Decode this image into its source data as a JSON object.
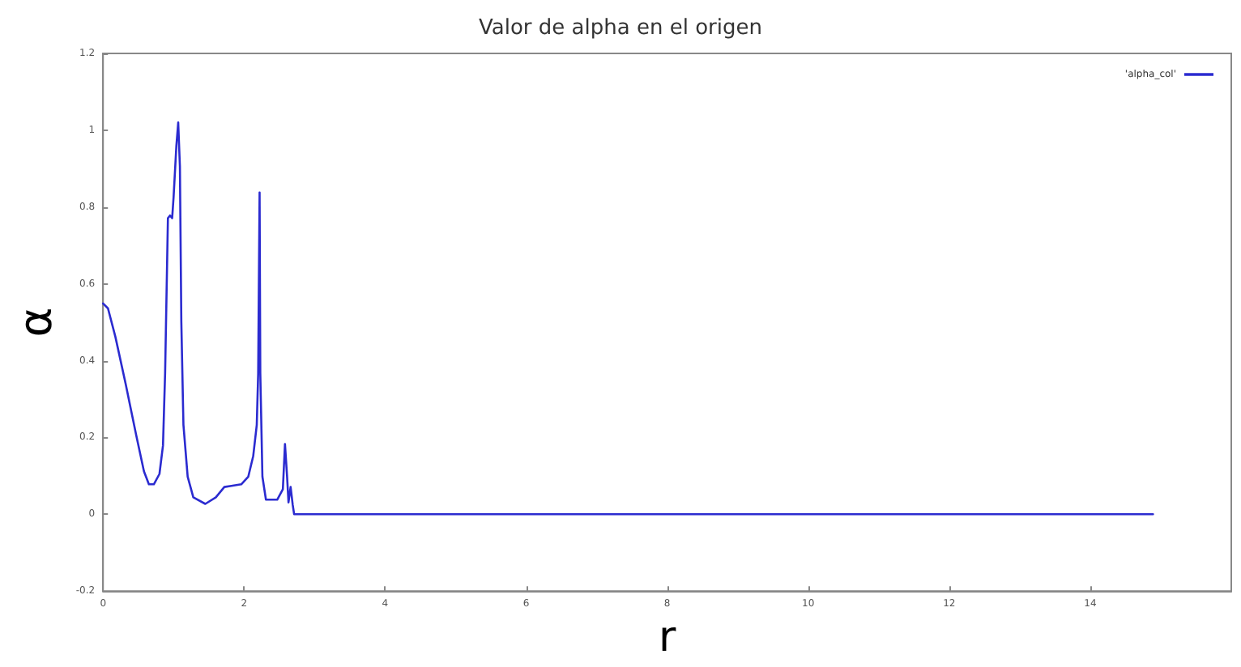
{
  "chart_data": {
    "type": "line",
    "title": "Valor de alpha en el origen",
    "xlabel": "r",
    "ylabel": "α",
    "xlim": [
      0,
      16
    ],
    "xticks": [
      0,
      2,
      4,
      6,
      8,
      10,
      12,
      14
    ],
    "ylim": [
      -0.2,
      1.2
    ],
    "yticks": [
      -0.2,
      0,
      0.2,
      0.4,
      0.6,
      0.8,
      1,
      1.2
    ],
    "grid": false,
    "legend": "top right",
    "marker": "none",
    "line_style": "solid",
    "series": [
      {
        "name": "'alpha_col'",
        "color": "#2b2bd0",
        "x": [
          0,
          0.07,
          0.175,
          0.32,
          0.47,
          0.58,
          0.65,
          0.72,
          0.8,
          0.85,
          0.88,
          0.92,
          0.95,
          0.98,
          1.0,
          1.04,
          1.066,
          1.09,
          1.11,
          1.14,
          1.2,
          1.28,
          1.45,
          1.6,
          1.72,
          1.82,
          1.96,
          2.06,
          2.13,
          2.18,
          2.2,
          2.22,
          2.23,
          2.26,
          2.31,
          2.47,
          2.55,
          2.58,
          2.61,
          2.63,
          2.66,
          2.69,
          2.71,
          14.89
        ],
        "values": [
          0.549,
          0.536,
          0.462,
          0.34,
          0.206,
          0.112,
          0.078,
          0.078,
          0.105,
          0.179,
          0.367,
          0.771,
          0.778,
          0.771,
          0.825,
          0.96,
          1.02,
          0.906,
          0.502,
          0.233,
          0.098,
          0.044,
          0.027,
          0.044,
          0.071,
          0.074,
          0.078,
          0.098,
          0.152,
          0.233,
          0.367,
          0.838,
          0.367,
          0.098,
          0.038,
          0.038,
          0.065,
          0.183,
          0.098,
          0.031,
          0.071,
          0.024,
          0,
          0
        ]
      }
    ]
  }
}
